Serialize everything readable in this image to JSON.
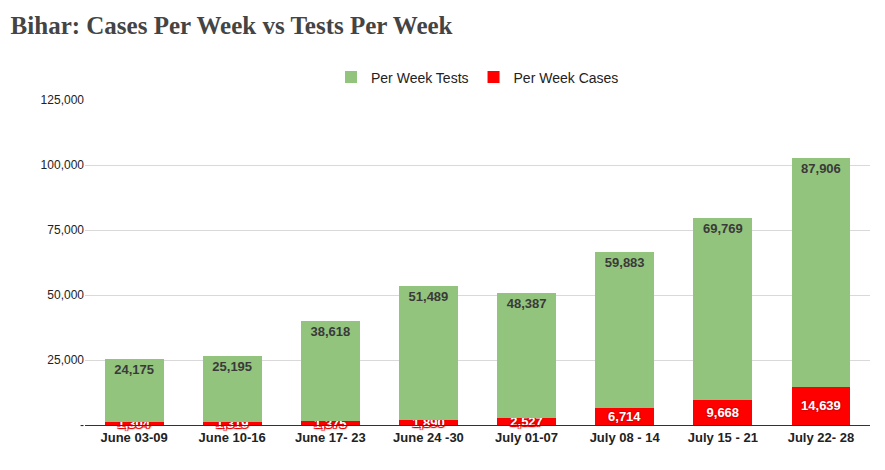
{
  "chart_data": {
    "type": "bar",
    "title": "Bihar: Cases Per Week vs Tests Per Week",
    "categories": [
      "June 03-09",
      "June 10-16",
      "June 17- 23",
      "June 24 -30",
      "July 01-07",
      "July 08 - 14",
      "July 15 - 21",
      "July 22- 28"
    ],
    "series": [
      {
        "name": "Per Week Cases",
        "color": "#ff0000",
        "values": [
          1304,
          1319,
          1375,
          1890,
          2527,
          6714,
          9668,
          14639
        ],
        "value_labels": [
          "1,304",
          "1,319",
          "1,375",
          "1,890",
          "2,527",
          "6,714",
          "9,668",
          "14,639"
        ]
      },
      {
        "name": "Per Week Tests",
        "color": "#93c47d",
        "values": [
          24175,
          25195,
          38618,
          51489,
          48387,
          59883,
          69769,
          87906
        ],
        "value_labels": [
          "24,175",
          "25,195",
          "38,618",
          "51,489",
          "48,387",
          "59,883",
          "69,769",
          "87,906"
        ]
      }
    ],
    "stacked": true,
    "data_labels": true,
    "legend": "top",
    "grid": true,
    "ylim": [
      0,
      125000
    ],
    "yticks": [
      {
        "value": 0,
        "label": "-"
      },
      {
        "value": 25000,
        "label": "25,000"
      },
      {
        "value": 50000,
        "label": "50,000"
      },
      {
        "value": 75000,
        "label": "75,000"
      },
      {
        "value": 100000,
        "label": "100,000"
      },
      {
        "value": 125000,
        "label": "125,000"
      }
    ]
  }
}
